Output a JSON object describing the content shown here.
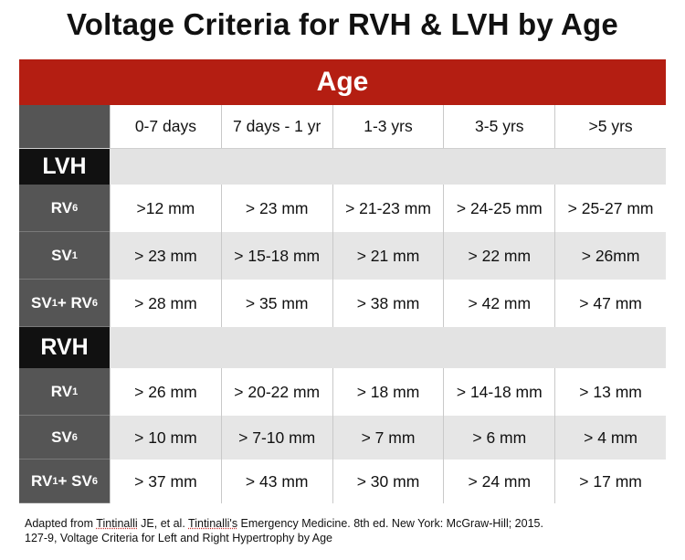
{
  "title": "Voltage Criteria for RVH & LVH by Age",
  "age_header": "Age",
  "columns": [
    "0-7 days",
    "7 days - 1 yr",
    "1-3 yrs",
    "3-5 yrs",
    ">5 yrs"
  ],
  "sections": [
    {
      "label": "LVH",
      "rows": [
        {
          "label": "RV",
          "sub": "6",
          "label2": "",
          "sub2": "",
          "values": [
            ">12 mm",
            "> 23 mm",
            "> 21-23 mm",
            "> 24-25 mm",
            "> 25-27 mm"
          ]
        },
        {
          "label": "SV",
          "sub": "1",
          "label2": "",
          "sub2": "",
          "values": [
            "> 23 mm",
            "> 15-18 mm",
            "> 21 mm",
            "> 22 mm",
            "> 26mm"
          ]
        },
        {
          "label": "SV",
          "sub": "1",
          "label2": " + RV",
          "sub2": "6",
          "values": [
            "> 28 mm",
            "> 35 mm",
            "> 38 mm",
            "> 42 mm",
            "> 47 mm"
          ]
        }
      ]
    },
    {
      "label": "RVH",
      "rows": [
        {
          "label": "RV",
          "sub": "1",
          "label2": "",
          "sub2": "",
          "values": [
            "> 26 mm",
            "> 20-22 mm",
            "> 18 mm",
            "> 14-18 mm",
            "> 13 mm"
          ]
        },
        {
          "label": "SV",
          "sub": "6",
          "label2": "",
          "sub2": "",
          "values": [
            "> 10 mm",
            "> 7-10 mm",
            "> 7 mm",
            "> 6 mm",
            "> 4 mm"
          ]
        },
        {
          "label": "RV",
          "sub": "1",
          "label2": " + SV",
          "sub2": "6",
          "values": [
            "> 37 mm",
            "> 43 mm",
            "> 30 mm",
            "> 24 mm",
            "> 17 mm"
          ]
        }
      ]
    }
  ],
  "footnote": {
    "line1_a": "Adapted from ",
    "line1_b": "Tintinalli",
    "line1_c": " JE, et al. ",
    "line1_d": "Tintinalli's",
    "line1_e": " Emergency Medicine. 8th ed. New York: McGraw-Hill; 2015.",
    "line2": "127-9, Voltage Criteria for Left and Right Hypertrophy by Age"
  }
}
